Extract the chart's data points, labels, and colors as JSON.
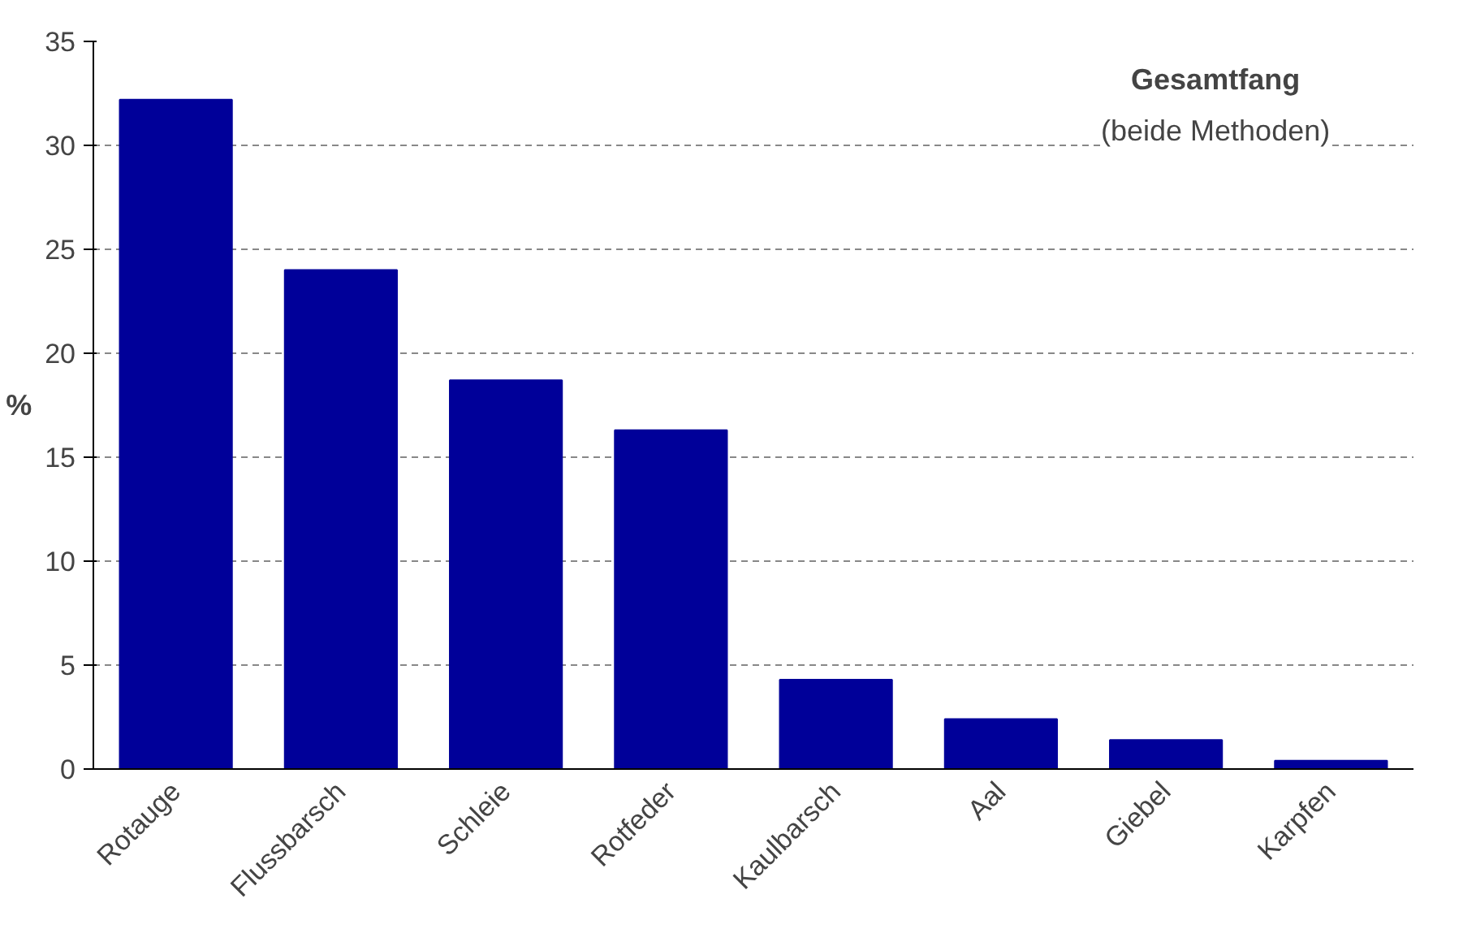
{
  "chart_data": {
    "type": "bar",
    "title": "Gesamtfang",
    "subtitle": "(beide Methoden)",
    "ylabel": "%",
    "categories": [
      "Rotauge",
      "Flussbarsch",
      "Schleie",
      "Rotfeder",
      "Kaulbarsch",
      "Aal",
      "Giebel",
      "Karpfen"
    ],
    "values": [
      32.2,
      24.0,
      18.7,
      16.3,
      4.3,
      2.4,
      1.4,
      0.4
    ],
    "color": "#000099",
    "ylim": [
      0,
      35
    ],
    "yticks": [
      0,
      5,
      10,
      15,
      20,
      25,
      30,
      35
    ],
    "grid": "y"
  }
}
